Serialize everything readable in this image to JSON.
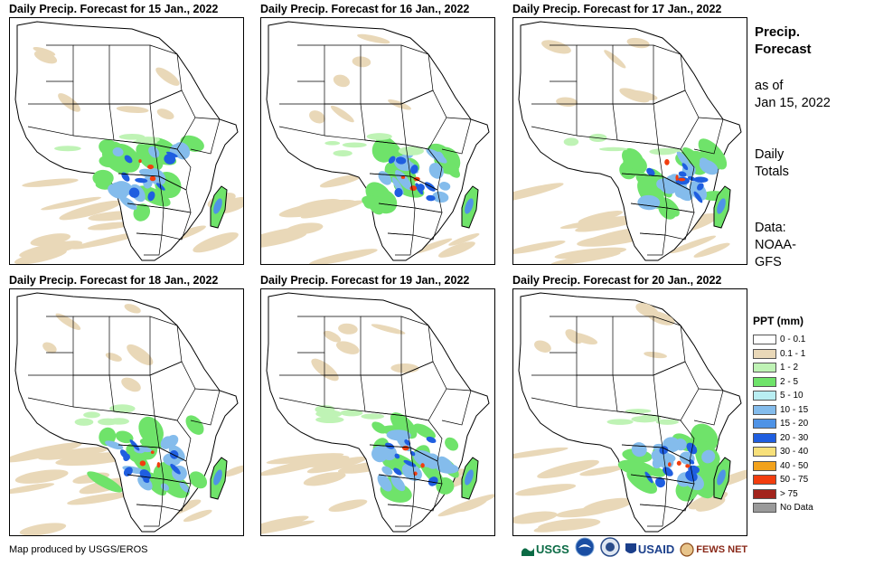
{
  "panels": [
    {
      "title": "Daily Precip. Forecast for 15 Jan., 2022",
      "variant": 0
    },
    {
      "title": "Daily Precip. Forecast for 16 Jan., 2022",
      "variant": 1
    },
    {
      "title": "Daily Precip. Forecast for 17 Jan., 2022",
      "variant": 2
    },
    {
      "title": "Daily Precip. Forecast for 18 Jan., 2022",
      "variant": 3
    },
    {
      "title": "Daily Precip. Forecast for 19 Jan., 2022",
      "variant": 4
    },
    {
      "title": "Daily Precip. Forecast for 20 Jan., 2022",
      "variant": 5
    }
  ],
  "sidebar": {
    "title_line1": "Precip.",
    "title_line2": "Forecast",
    "asof_line1": "as of",
    "asof_line2": "Jan 15, 2022",
    "totals_line1": "Daily",
    "totals_line2": "Totals",
    "data_line1": "Data:",
    "data_line2": "NOAA-",
    "data_line3": "GFS"
  },
  "legend": {
    "title": "PPT (mm)",
    "items": [
      {
        "label": "0 - 0.1",
        "color": "#ffffff"
      },
      {
        "label": "0.1 - 1",
        "color": "#e9d8b8"
      },
      {
        "label": "1 - 2",
        "color": "#bff3b5"
      },
      {
        "label": "2 - 5",
        "color": "#6fe36a"
      },
      {
        "label": "5 - 10",
        "color": "#b9eef2"
      },
      {
        "label": "10 - 15",
        "color": "#84bcec"
      },
      {
        "label": "15 - 20",
        "color": "#4f93e6"
      },
      {
        "label": "20 - 30",
        "color": "#1f5ee0"
      },
      {
        "label": "30 - 40",
        "color": "#f7e07a"
      },
      {
        "label": "40 - 50",
        "color": "#f2a21c"
      },
      {
        "label": "50 - 75",
        "color": "#f23d0e"
      },
      {
        "label": "> 75",
        "color": "#a3241c"
      },
      {
        "label": "No Data",
        "color": "#9a9a9a"
      }
    ]
  },
  "footer": {
    "credit": "Map produced by USGS/EROS"
  },
  "logos": {
    "usgs": "USGS",
    "noaa": "NOAA",
    "usaid": "USAID",
    "fewsnet": "FEWS NET"
  }
}
